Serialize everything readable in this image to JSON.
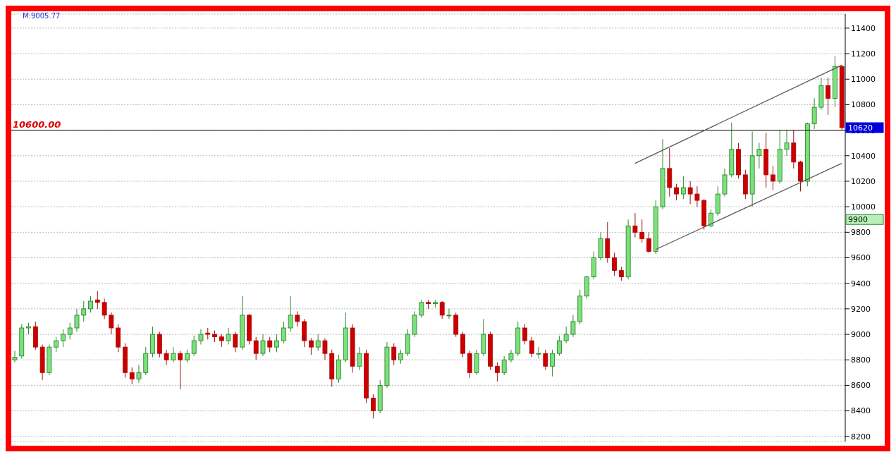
{
  "chart_data": {
    "type": "candlestick",
    "categories": [
      null,
      null,
      null,
      null,
      null,
      null,
      null,
      null,
      null,
      null,
      null,
      null,
      null,
      null,
      null,
      null,
      null,
      null,
      null,
      null,
      null,
      null,
      null,
      null,
      null,
      null,
      null,
      null,
      null,
      null,
      null,
      null,
      null,
      null,
      null,
      null,
      null,
      null,
      null,
      null,
      null,
      null,
      null,
      null,
      null,
      null,
      null,
      null,
      null,
      null,
      null,
      null,
      null,
      null,
      null,
      null,
      null,
      null,
      null,
      null,
      null,
      null,
      null,
      null,
      null,
      null,
      null,
      null,
      null,
      null,
      null,
      null,
      null,
      null,
      null,
      null,
      null,
      null,
      null,
      null,
      null,
      null,
      null,
      null,
      null,
      null,
      null,
      null,
      null,
      null,
      null,
      null,
      null,
      null,
      null,
      null,
      null,
      null,
      null,
      null,
      null,
      null,
      null,
      null,
      null,
      null,
      null,
      null,
      null,
      null,
      null,
      null,
      null,
      null,
      null,
      null,
      null,
      null,
      null,
      null,
      null
    ],
    "ohlc": [
      [
        8800,
        8870,
        8780,
        8820
      ],
      [
        8830,
        9080,
        8810,
        9050
      ],
      [
        9050,
        9090,
        9000,
        9060
      ],
      [
        9060,
        9100,
        8880,
        8900
      ],
      [
        8900,
        8920,
        8640,
        8700
      ],
      [
        8700,
        8920,
        8680,
        8900
      ],
      [
        8900,
        8980,
        8860,
        8950
      ],
      [
        8950,
        9040,
        8900,
        9000
      ],
      [
        9000,
        9090,
        8960,
        9050
      ],
      [
        9050,
        9200,
        9020,
        9150
      ],
      [
        9150,
        9260,
        9100,
        9200
      ],
      [
        9200,
        9300,
        9170,
        9260
      ],
      [
        9270,
        9340,
        9200,
        9250
      ],
      [
        9250,
        9280,
        9120,
        9150
      ],
      [
        9150,
        9170,
        9000,
        9050
      ],
      [
        9050,
        9080,
        8860,
        8900
      ],
      [
        8900,
        8930,
        8660,
        8700
      ],
      [
        8700,
        8740,
        8610,
        8650
      ],
      [
        8650,
        8760,
        8620,
        8700
      ],
      [
        8700,
        8900,
        8680,
        8850
      ],
      [
        8850,
        9060,
        8820,
        9000
      ],
      [
        9000,
        9020,
        8820,
        8850
      ],
      [
        8850,
        8880,
        8760,
        8800
      ],
      [
        8800,
        8900,
        8780,
        8850
      ],
      [
        8850,
        8870,
        8570,
        8800
      ],
      [
        8800,
        8880,
        8780,
        8850
      ],
      [
        8850,
        8990,
        8830,
        8950
      ],
      [
        8950,
        9040,
        8920,
        9000
      ],
      [
        9010,
        9050,
        8960,
        9000
      ],
      [
        9000,
        9030,
        8940,
        8980
      ],
      [
        8980,
        9000,
        8900,
        8950
      ],
      [
        8950,
        9050,
        8920,
        9000
      ],
      [
        9000,
        9020,
        8860,
        8900
      ],
      [
        8900,
        9300,
        8880,
        9150
      ],
      [
        9150,
        9160,
        8920,
        8950
      ],
      [
        8950,
        8980,
        8800,
        8850
      ],
      [
        8850,
        9000,
        8830,
        8950
      ],
      [
        8950,
        8980,
        8860,
        8900
      ],
      [
        8900,
        9000,
        8860,
        8950
      ],
      [
        8950,
        9100,
        8930,
        9050
      ],
      [
        9050,
        9300,
        9020,
        9150
      ],
      [
        9150,
        9180,
        9060,
        9100
      ],
      [
        9100,
        9120,
        8900,
        8950
      ],
      [
        8950,
        8970,
        8840,
        8900
      ],
      [
        8900,
        9000,
        8870,
        8950
      ],
      [
        8950,
        8970,
        8800,
        8850
      ],
      [
        8850,
        8880,
        8590,
        8650
      ],
      [
        8650,
        8840,
        8620,
        8800
      ],
      [
        8800,
        9170,
        8780,
        9050
      ],
      [
        9050,
        9080,
        8700,
        8750
      ],
      [
        8750,
        8900,
        8720,
        8850
      ],
      [
        8850,
        8880,
        8460,
        8500
      ],
      [
        8500,
        8530,
        8340,
        8400
      ],
      [
        8400,
        8640,
        8380,
        8600
      ],
      [
        8600,
        8940,
        8580,
        8900
      ],
      [
        8900,
        8930,
        8760,
        8800
      ],
      [
        8800,
        8880,
        8770,
        8850
      ],
      [
        8850,
        9040,
        8830,
        9000
      ],
      [
        9000,
        9180,
        8980,
        9150
      ],
      [
        9150,
        9270,
        9130,
        9250
      ],
      [
        9250,
        9270,
        9200,
        9240
      ],
      [
        9240,
        9270,
        9210,
        9250
      ],
      [
        9250,
        9260,
        9120,
        9150
      ],
      [
        9150,
        9200,
        9120,
        9150
      ],
      [
        9150,
        9170,
        8980,
        9000
      ],
      [
        9000,
        9020,
        8820,
        8850
      ],
      [
        8850,
        8870,
        8660,
        8700
      ],
      [
        8700,
        8880,
        8680,
        8850
      ],
      [
        8850,
        9120,
        8830,
        9000
      ],
      [
        9000,
        9020,
        8720,
        8750
      ],
      [
        8750,
        8780,
        8630,
        8700
      ],
      [
        8700,
        8830,
        8680,
        8800
      ],
      [
        8800,
        8880,
        8780,
        8850
      ],
      [
        8850,
        9100,
        8830,
        9050
      ],
      [
        9050,
        9080,
        8920,
        8950
      ],
      [
        8950,
        8980,
        8820,
        8850
      ],
      [
        8850,
        8900,
        8810,
        8850
      ],
      [
        8850,
        8880,
        8720,
        8750
      ],
      [
        8750,
        8880,
        8670,
        8850
      ],
      [
        8850,
        8990,
        8830,
        8950
      ],
      [
        8950,
        9060,
        8930,
        9000
      ],
      [
        9000,
        9150,
        8980,
        9100
      ],
      [
        9100,
        9350,
        9080,
        9300
      ],
      [
        9300,
        9460,
        9280,
        9450
      ],
      [
        9450,
        9650,
        9430,
        9600
      ],
      [
        9600,
        9800,
        9580,
        9750
      ],
      [
        9750,
        9880,
        9560,
        9600
      ],
      [
        9600,
        9640,
        9460,
        9500
      ],
      [
        9500,
        9530,
        9420,
        9450
      ],
      [
        9450,
        9900,
        9430,
        9850
      ],
      [
        9850,
        9950,
        9760,
        9800
      ],
      [
        9800,
        9900,
        9720,
        9750
      ],
      [
        9750,
        9800,
        9640,
        9650
      ],
      [
        9650,
        10050,
        9630,
        10000
      ],
      [
        10000,
        10530,
        9980,
        10300
      ],
      [
        10300,
        10460,
        10080,
        10150
      ],
      [
        10150,
        10180,
        10050,
        10100
      ],
      [
        10100,
        10240,
        10060,
        10150
      ],
      [
        10150,
        10200,
        10020,
        10100
      ],
      [
        10100,
        10160,
        10000,
        10050
      ],
      [
        10050,
        10060,
        9820,
        9850
      ],
      [
        9850,
        9980,
        9840,
        9950
      ],
      [
        9950,
        10160,
        9930,
        10100
      ],
      [
        10100,
        10300,
        10080,
        10250
      ],
      [
        10250,
        10660,
        10230,
        10450
      ],
      [
        10450,
        10500,
        10220,
        10250
      ],
      [
        10250,
        10290,
        10060,
        10100
      ],
      [
        10100,
        10590,
        10000,
        10400
      ],
      [
        10400,
        10500,
        10300,
        10450
      ],
      [
        10450,
        10580,
        10150,
        10250
      ],
      [
        10250,
        10320,
        10130,
        10200
      ],
      [
        10200,
        10600,
        10180,
        10450
      ],
      [
        10450,
        10600,
        10400,
        10500
      ],
      [
        10500,
        10600,
        10300,
        10350
      ],
      [
        10350,
        10360,
        10120,
        10200
      ],
      [
        10200,
        10660,
        10160,
        10650
      ],
      [
        10650,
        10850,
        10610,
        10780
      ],
      [
        10780,
        11010,
        10760,
        10950
      ],
      [
        10950,
        11010,
        10720,
        10850
      ],
      [
        10850,
        11180,
        10780,
        11100
      ],
      [
        11100,
        11110,
        10600,
        10620
      ]
    ],
    "series": [
      {
        "type": "line",
        "color": "#555555",
        "values": [
          null,
          null,
          null,
          null,
          null,
          null,
          null,
          null,
          null,
          null,
          null,
          null,
          null,
          null,
          null,
          null,
          null,
          null,
          null,
          null,
          null,
          null,
          null,
          null,
          null,
          null,
          null,
          null,
          null,
          null,
          null,
          null,
          null,
          null,
          null,
          null,
          null,
          null,
          null,
          null,
          null,
          null,
          null,
          null,
          null,
          null,
          null,
          null,
          null,
          null,
          null,
          null,
          null,
          null,
          null,
          null,
          null,
          null,
          null,
          null,
          null,
          null,
          null,
          null,
          null,
          null,
          null,
          null,
          null,
          null,
          null,
          null,
          null,
          null,
          null,
          null,
          null,
          null,
          null,
          null,
          null,
          null,
          null,
          null,
          null,
          null,
          null,
          null,
          null,
          null,
          10340,
          null,
          null,
          null,
          null,
          null,
          null,
          null,
          null,
          null,
          null,
          null,
          null,
          null,
          null,
          null,
          null,
          null,
          null,
          null,
          null,
          null,
          null,
          null,
          null,
          null,
          null,
          null,
          null,
          null,
          11110
        ]
      },
      {
        "type": "line",
        "color": "#555555",
        "values": [
          null,
          null,
          null,
          null,
          null,
          null,
          null,
          null,
          null,
          null,
          null,
          null,
          null,
          null,
          null,
          null,
          null,
          null,
          null,
          null,
          null,
          null,
          null,
          null,
          null,
          null,
          null,
          null,
          null,
          null,
          null,
          null,
          null,
          null,
          null,
          null,
          null,
          null,
          null,
          null,
          null,
          null,
          null,
          null,
          null,
          null,
          null,
          null,
          null,
          null,
          null,
          null,
          null,
          null,
          null,
          null,
          null,
          null,
          null,
          null,
          null,
          null,
          null,
          null,
          null,
          null,
          null,
          null,
          null,
          null,
          null,
          null,
          null,
          null,
          null,
          null,
          null,
          null,
          null,
          null,
          null,
          null,
          null,
          null,
          null,
          null,
          null,
          null,
          null,
          null,
          null,
          null,
          null,
          9665,
          null,
          null,
          null,
          null,
          null,
          null,
          null,
          null,
          null,
          null,
          null,
          null,
          null,
          null,
          null,
          null,
          null,
          null,
          null,
          null,
          null,
          null,
          null,
          null,
          null,
          null,
          10340
        ]
      }
    ],
    "ylim": [
      8160,
      11510
    ],
    "yticks": [
      8200,
      8400,
      8600,
      8800,
      9000,
      9200,
      9400,
      9600,
      9800,
      10000,
      10200,
      10400,
      10600,
      10800,
      11000,
      11200,
      11400
    ],
    "grid": "y",
    "tick_labels": "y",
    "ref_lines": [
      {
        "axis": "y",
        "value": 10600,
        "label": "10600.00",
        "color": "#000000"
      }
    ],
    "annotations": [
      "M:9005.77",
      "10620",
      "9900"
    ]
  }
}
